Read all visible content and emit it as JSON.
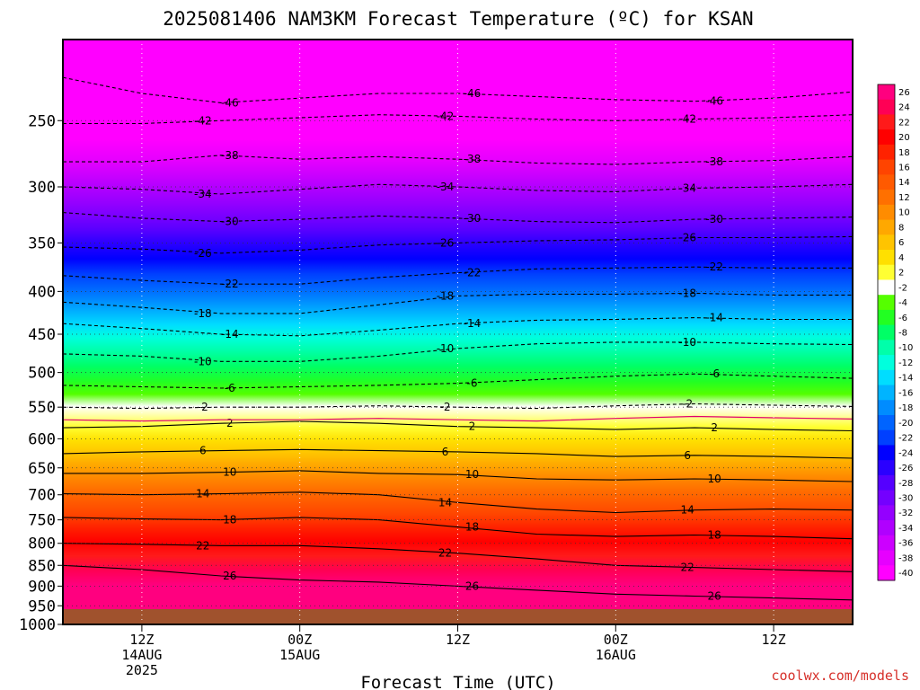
{
  "chart_data": {
    "type": "heatmap",
    "title": "2025081406 NAM3KM Forecast Temperature (ºC) for KSAN",
    "xlabel": "Forecast Time (UTC)",
    "credit": "coolwx.com/models",
    "y_scale": "log-pressure (hPa), inverted",
    "ylim": [
      1000,
      200
    ],
    "y_ticks": [
      250,
      300,
      350,
      400,
      450,
      500,
      550,
      600,
      650,
      700,
      750,
      800,
      850,
      900,
      950,
      1000
    ],
    "x_ticks": [
      {
        "line1": "12Z",
        "line2": "14AUG",
        "line3": "2025"
      },
      {
        "line1": "00Z",
        "line2": "15AUG",
        "line3": ""
      },
      {
        "line1": "12Z",
        "line2": "",
        "line3": ""
      },
      {
        "line1": "00Z",
        "line2": "16AUG",
        "line3": ""
      },
      {
        "line1": "12Z",
        "line2": "",
        "line3": ""
      }
    ],
    "forecast_hours": [
      0,
      6,
      12,
      18,
      24,
      30,
      36,
      42,
      48,
      54,
      60
    ],
    "grid": "dotted",
    "terrain_color": "#a0522d",
    "colorbar": {
      "labels": [
        26,
        24,
        22,
        20,
        18,
        16,
        14,
        12,
        10,
        8,
        6,
        4,
        2,
        -2,
        -4,
        -6,
        -8,
        -10,
        -12,
        -14,
        -16,
        -18,
        -20,
        -22,
        -24,
        -26,
        -28,
        -30,
        -32,
        -34,
        -36,
        -38,
        -40
      ],
      "colors": [
        "#ff007f",
        "#ff0055",
        "#ff1a1a",
        "#ff0000",
        "#ff2200",
        "#ff4400",
        "#ff5a00",
        "#ff7000",
        "#ff8c00",
        "#ffa800",
        "#ffc400",
        "#ffe000",
        "#ffff33",
        "#ffffff",
        "#55ff00",
        "#22ff22",
        "#00ff66",
        "#00ffaa",
        "#00ffdd",
        "#00ddff",
        "#00b4ff",
        "#008cff",
        "#0064ff",
        "#0040ff",
        "#0000ff",
        "#2a00ff",
        "#5500ff",
        "#7400ff",
        "#9400ff",
        "#b000ff",
        "#cc00ff",
        "#e600ff",
        "#ff00ff"
      ]
    },
    "isotherms": [
      {
        "label": "-46",
        "p": [
          222,
          232,
          238,
          235,
          232,
          232,
          234,
          236,
          237,
          235,
          231
        ]
      },
      {
        "label": "-42",
        "p": [
          252,
          252,
          250,
          248,
          246,
          247,
          249,
          250,
          249,
          248,
          246
        ]
      },
      {
        "label": "-38",
        "p": [
          280,
          280,
          275,
          278,
          276,
          278,
          281,
          282,
          280,
          279,
          276
        ]
      },
      {
        "label": "-34",
        "p": [
          300,
          302,
          306,
          302,
          298,
          300,
          303,
          304,
          301,
          300,
          298
        ]
      },
      {
        "label": "-30",
        "p": [
          322,
          327,
          330,
          328,
          325,
          327,
          330,
          331,
          328,
          327,
          326
        ]
      },
      {
        "label": "-26",
        "p": [
          354,
          356,
          360,
          357,
          352,
          350,
          348,
          347,
          345,
          345,
          344
        ]
      },
      {
        "label": "-22",
        "p": [
          383,
          388,
          392,
          392,
          385,
          380,
          376,
          375,
          374,
          375,
          375
        ]
      },
      {
        "label": "-18",
        "p": [
          412,
          418,
          425,
          425,
          415,
          405,
          403,
          403,
          402,
          404,
          404
        ]
      },
      {
        "label": "-14",
        "p": [
          437,
          443,
          450,
          452,
          445,
          437,
          433,
          432,
          430,
          432,
          432
        ]
      },
      {
        "label": "-10",
        "p": [
          475,
          478,
          485,
          485,
          478,
          468,
          462,
          460,
          460,
          462,
          463
        ]
      },
      {
        "label": "-6",
        "p": [
          518,
          520,
          522,
          520,
          518,
          515,
          510,
          505,
          502,
          505,
          508
        ]
      },
      {
        "label": "-2",
        "p": [
          550,
          552,
          550,
          550,
          548,
          550,
          552,
          548,
          545,
          547,
          549
        ]
      },
      {
        "label": "2",
        "p": [
          582,
          580,
          575,
          572,
          575,
          580,
          582,
          585,
          582,
          585,
          587
        ]
      },
      {
        "label": "6",
        "p": [
          625,
          622,
          620,
          618,
          620,
          622,
          625,
          630,
          628,
          630,
          633
        ]
      },
      {
        "label": "10",
        "p": [
          660,
          660,
          658,
          655,
          660,
          662,
          670,
          672,
          670,
          672,
          675
        ]
      },
      {
        "label": "14",
        "p": [
          698,
          700,
          698,
          695,
          700,
          715,
          728,
          735,
          730,
          728,
          730
        ]
      },
      {
        "label": "18",
        "p": [
          745,
          748,
          750,
          745,
          750,
          765,
          780,
          785,
          782,
          785,
          790
        ]
      },
      {
        "label": "22",
        "p": [
          800,
          802,
          805,
          805,
          812,
          822,
          835,
          850,
          855,
          860,
          865
        ]
      },
      {
        "label": "26",
        "p": [
          850,
          860,
          875,
          885,
          890,
          900,
          910,
          920,
          925,
          930,
          935
        ]
      }
    ]
  }
}
